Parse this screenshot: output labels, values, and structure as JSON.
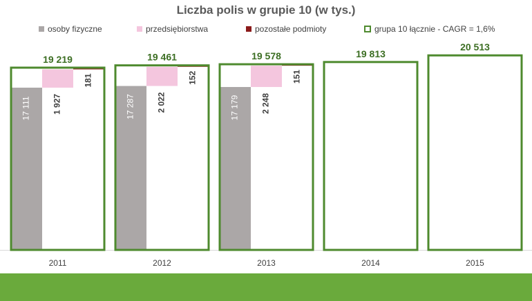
{
  "chart_data": {
    "type": "bar",
    "title": "Liczba polis w grupie 10 (w tys.)",
    "categories": [
      "2011",
      "2012",
      "2013",
      "2014",
      "2015"
    ],
    "series": [
      {
        "name": "osoby fizyczne",
        "color": "#aba7a7",
        "values": [
          17111,
          17287,
          17179,
          null,
          null
        ],
        "labels": [
          "17 111",
          "17 287",
          "17 179",
          "",
          ""
        ]
      },
      {
        "name": "przedsiębiorstwa",
        "color": "#f4c6de",
        "values": [
          1927,
          2022,
          2248,
          null,
          null
        ],
        "labels": [
          "1 927",
          "2 022",
          "2 248",
          "",
          ""
        ]
      },
      {
        "name": "pozostałe podmioty",
        "color": "#8b1a1a",
        "values": [
          181,
          152,
          151,
          null,
          null
        ],
        "labels": [
          "181",
          "152",
          "151",
          "",
          ""
        ]
      },
      {
        "name": "grupa 10 łącznie - CAGR = 1,6%",
        "color": "#4e8a2e",
        "values": [
          19219,
          19461,
          19578,
          19813,
          20513
        ],
        "labels": [
          "19 219",
          "19 461",
          "19 578",
          "19 813",
          "20 513"
        ]
      }
    ],
    "legend_position": "top",
    "grid": false
  }
}
